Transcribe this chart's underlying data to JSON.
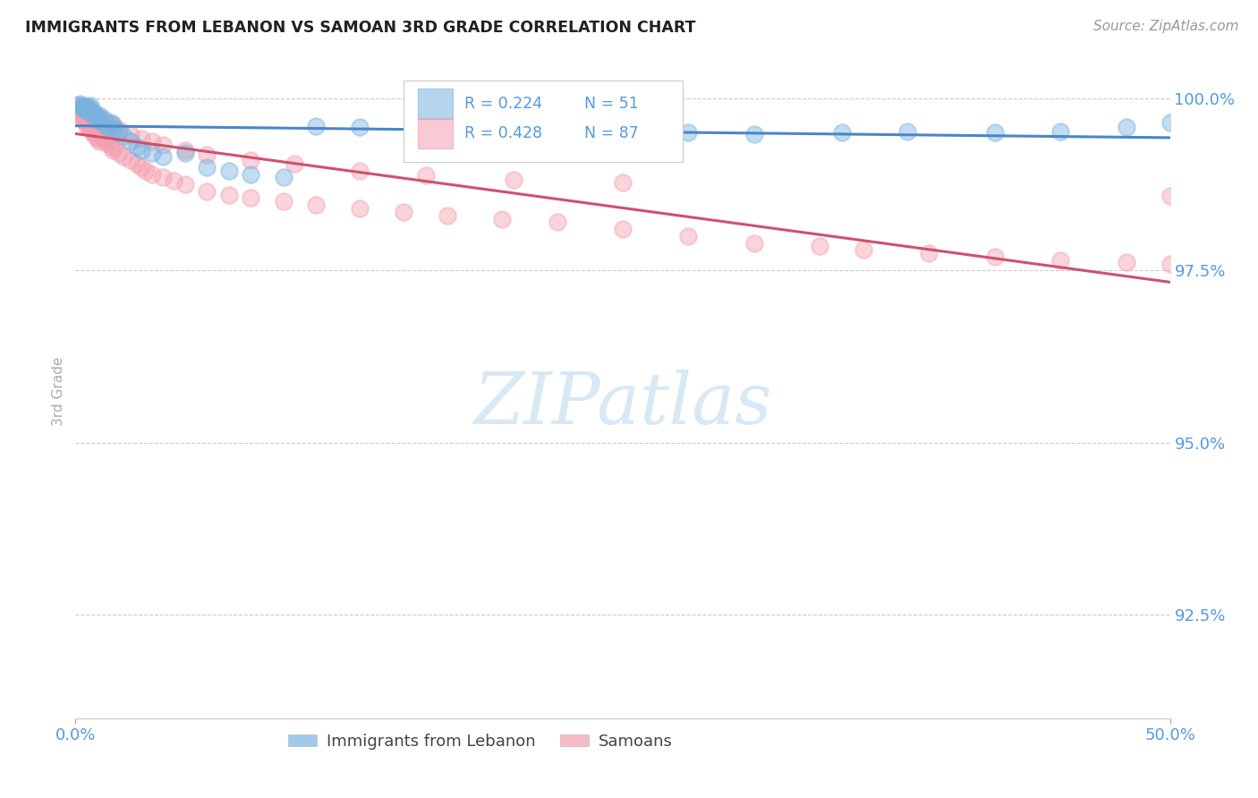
{
  "title": "IMMIGRANTS FROM LEBANON VS SAMOAN 3RD GRADE CORRELATION CHART",
  "source_text": "Source: ZipAtlas.com",
  "ylabel": "3rd Grade",
  "xlim": [
    0.0,
    0.5
  ],
  "ylim": [
    0.91,
    1.005
  ],
  "ytick_values": [
    0.925,
    0.95,
    0.975,
    1.0
  ],
  "ytick_labels": [
    "92.5%",
    "95.0%",
    "97.5%",
    "100.0%"
  ],
  "xtick_values": [
    0.0,
    0.5
  ],
  "xtick_labels": [
    "0.0%",
    "50.0%"
  ],
  "color_blue": "#7ab3e0",
  "color_pink": "#f4a0b0",
  "line_color_blue": "#4a86c8",
  "line_color_pink": "#d05070",
  "watermark_text": "ZIPatlas",
  "watermark_color": "#d8e8f4",
  "grid_color": "#cccccc",
  "title_color": "#222222",
  "source_color": "#999999",
  "tick_color": "#5599dd",
  "ylabel_color": "#aaaaaa",
  "legend_r_blue": "R = 0.224",
  "legend_n_blue": "N = 51",
  "legend_r_pink": "R = 0.428",
  "legend_n_pink": "N = 87",
  "blue_x": [
    0.001,
    0.002,
    0.003,
    0.003,
    0.004,
    0.004,
    0.005,
    0.005,
    0.006,
    0.006,
    0.007,
    0.007,
    0.008,
    0.008,
    0.009,
    0.01,
    0.01,
    0.011,
    0.012,
    0.013,
    0.014,
    0.015,
    0.016,
    0.017,
    0.018,
    0.02,
    0.022,
    0.025,
    0.028,
    0.03,
    0.035,
    0.04,
    0.05,
    0.06,
    0.07,
    0.08,
    0.095,
    0.11,
    0.13,
    0.16,
    0.195,
    0.22,
    0.25,
    0.28,
    0.31,
    0.35,
    0.38,
    0.42,
    0.45,
    0.48,
    0.5
  ],
  "blue_y": [
    0.999,
    0.9992,
    0.9988,
    0.9985,
    0.999,
    0.9987,
    0.9982,
    0.9988,
    0.9985,
    0.998,
    0.999,
    0.9985,
    0.9975,
    0.998,
    0.9978,
    0.9972,
    0.9968,
    0.9975,
    0.9965,
    0.997,
    0.996,
    0.9958,
    0.9965,
    0.9962,
    0.9955,
    0.995,
    0.9945,
    0.9938,
    0.993,
    0.9925,
    0.992,
    0.9915,
    0.992,
    0.99,
    0.9895,
    0.989,
    0.9885,
    0.996,
    0.9958,
    0.9955,
    0.9952,
    0.995,
    0.9952,
    0.995,
    0.9948,
    0.995,
    0.9952,
    0.995,
    0.9952,
    0.9958,
    0.9965
  ],
  "pink_x": [
    0.001,
    0.001,
    0.002,
    0.002,
    0.003,
    0.003,
    0.004,
    0.004,
    0.005,
    0.005,
    0.005,
    0.006,
    0.006,
    0.007,
    0.007,
    0.008,
    0.008,
    0.009,
    0.009,
    0.01,
    0.01,
    0.011,
    0.011,
    0.012,
    0.013,
    0.014,
    0.015,
    0.016,
    0.017,
    0.018,
    0.02,
    0.022,
    0.025,
    0.028,
    0.03,
    0.032,
    0.035,
    0.04,
    0.045,
    0.05,
    0.06,
    0.07,
    0.08,
    0.095,
    0.11,
    0.13,
    0.15,
    0.17,
    0.195,
    0.22,
    0.25,
    0.28,
    0.31,
    0.34,
    0.36,
    0.39,
    0.42,
    0.45,
    0.48,
    0.5,
    0.002,
    0.003,
    0.004,
    0.005,
    0.006,
    0.007,
    0.008,
    0.009,
    0.01,
    0.012,
    0.014,
    0.016,
    0.018,
    0.02,
    0.025,
    0.03,
    0.035,
    0.04,
    0.05,
    0.06,
    0.08,
    0.1,
    0.13,
    0.16,
    0.2,
    0.25,
    0.5
  ],
  "pink_y": [
    0.9985,
    0.9978,
    0.9982,
    0.9975,
    0.9978,
    0.997,
    0.9975,
    0.9968,
    0.9972,
    0.9965,
    0.996,
    0.9968,
    0.9958,
    0.9962,
    0.9955,
    0.9958,
    0.995,
    0.9955,
    0.9945,
    0.995,
    0.9942,
    0.9948,
    0.9938,
    0.9945,
    0.994,
    0.9935,
    0.9938,
    0.993,
    0.9925,
    0.9928,
    0.992,
    0.9915,
    0.991,
    0.9905,
    0.99,
    0.9895,
    0.989,
    0.9885,
    0.988,
    0.9875,
    0.9865,
    0.986,
    0.9855,
    0.985,
    0.9845,
    0.984,
    0.9835,
    0.983,
    0.9825,
    0.982,
    0.981,
    0.98,
    0.979,
    0.9785,
    0.978,
    0.9775,
    0.977,
    0.9765,
    0.9762,
    0.976,
    0.999,
    0.9988,
    0.9985,
    0.9982,
    0.998,
    0.9978,
    0.9976,
    0.9974,
    0.9972,
    0.9968,
    0.9965,
    0.9962,
    0.9958,
    0.9955,
    0.9948,
    0.9942,
    0.9938,
    0.9932,
    0.9925,
    0.9918,
    0.991,
    0.9905,
    0.9895,
    0.9888,
    0.9882,
    0.9878,
    0.9858
  ]
}
